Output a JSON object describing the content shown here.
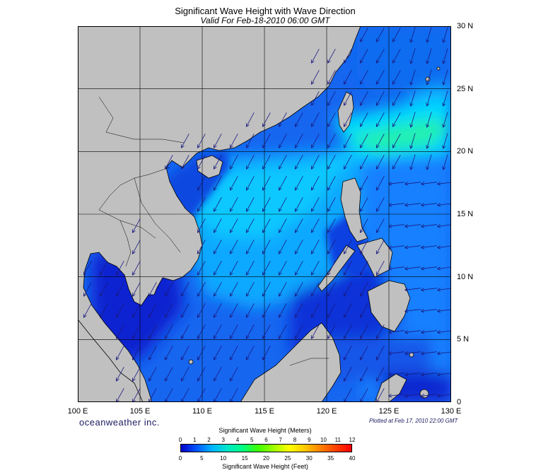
{
  "title": "Significant Wave Height with Wave Direction",
  "subtitle": "Valid For Feb-18-2010 06:00 GMT",
  "extent": {
    "lon": [
      100,
      130
    ],
    "lat": [
      0,
      30
    ]
  },
  "lon_labels": [
    "100 E",
    "105 E",
    "110 E",
    "115 E",
    "120 E",
    "125 E",
    "130 E"
  ],
  "lat_labels": [
    "30 N",
    "25 N",
    "20 N",
    "15 N",
    "10 N",
    "5 N",
    "0"
  ],
  "grid": true,
  "brand": "oceanweather inc.",
  "plotted": "Plotted at Feb 17, 2010 22:00 GMT",
  "colorbar": {
    "title_meters": "Significant Wave Height (Meters)",
    "title_feet": "Significant Wave Height (Feet)",
    "meter_ticks": [
      "0",
      "1",
      "2",
      "3",
      "4",
      "5",
      "6",
      "7",
      "8",
      "9",
      "10",
      "11",
      "12"
    ],
    "feet_ticks": [
      "0",
      "5",
      "10",
      "15",
      "20",
      "25",
      "30",
      "35",
      "40"
    ],
    "colors": [
      "#0000c8",
      "#0055ff",
      "#00b4ff",
      "#00e6c8",
      "#00ff80",
      "#40ff00",
      "#a0ff00",
      "#ffff00",
      "#ffc800",
      "#ff8000",
      "#ff4000",
      "#ff0000"
    ]
  },
  "colors": {
    "land": "#c0c0c0",
    "coast": "#000000",
    "arrow": "#1a1a80",
    "sea_low": "#0a1ecc",
    "sea_mid": "#1478ff",
    "sea_high": "#00dcff",
    "sea_peak": "#30ff90"
  }
}
